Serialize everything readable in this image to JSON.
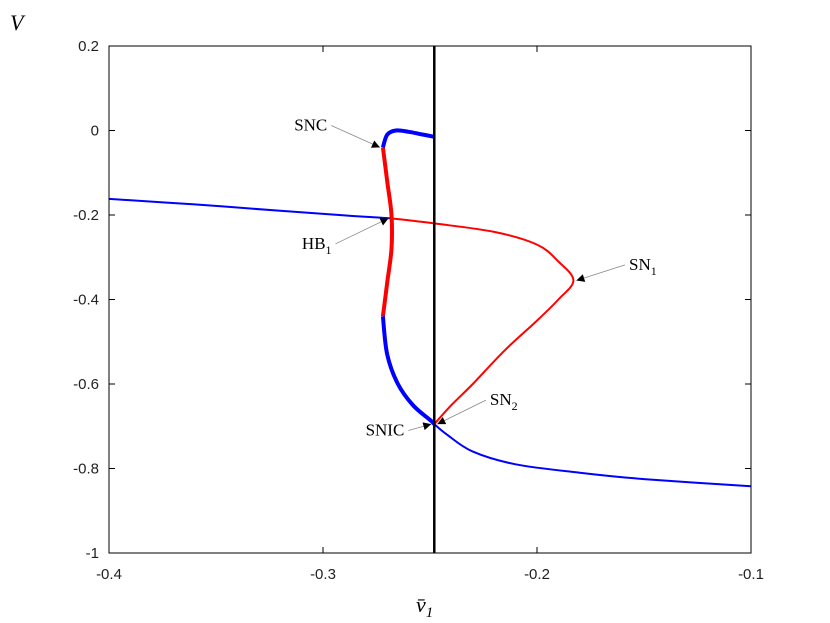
{
  "chart_data": {
    "type": "line",
    "ylabel": "V",
    "xlabel": "v̄",
    "xlabel_sub": "1",
    "xlim": [
      -0.4,
      -0.1
    ],
    "ylim": [
      -1,
      0.2
    ],
    "xticks": [
      -0.4,
      -0.3,
      -0.2,
      -0.1
    ],
    "xtick_labels": [
      "-0.4",
      "-0.3",
      "-0.2",
      "-0.1"
    ],
    "yticks": [
      0.2,
      0,
      -0.2,
      -0.4,
      -0.6,
      -0.8,
      -1
    ],
    "ytick_labels": [
      "0.2",
      "0",
      "-0.2",
      "-0.4",
      "-0.6",
      "-0.8",
      "-1"
    ],
    "grid": false,
    "vertical_line_x": -0.248,
    "series": [
      {
        "color": "#0000ff",
        "width": 2,
        "x": [
          -0.4,
          -0.36,
          -0.32,
          -0.29,
          -0.268
        ],
        "y": [
          -0.162,
          -0.175,
          -0.19,
          -0.201,
          -0.208
        ]
      },
      {
        "color": "#ff0000",
        "width": 2,
        "x": [
          -0.268,
          -0.248,
          -0.22,
          -0.2,
          -0.19,
          -0.183,
          -0.19,
          -0.2,
          -0.215,
          -0.23,
          -0.24,
          -0.248
        ],
        "y": [
          -0.208,
          -0.22,
          -0.24,
          -0.27,
          -0.31,
          -0.355,
          -0.4,
          -0.45,
          -0.52,
          -0.6,
          -0.65,
          -0.695
        ]
      },
      {
        "color": "#0000ff",
        "width": 2,
        "x": [
          -0.248,
          -0.242,
          -0.23,
          -0.21,
          -0.18,
          -0.15,
          -0.1
        ],
        "y": [
          -0.695,
          -0.72,
          -0.76,
          -0.79,
          -0.81,
          -0.825,
          -0.842
        ]
      },
      {
        "color": "#ff0000",
        "width": 4,
        "x": [
          -0.272,
          -0.27,
          -0.268,
          -0.268,
          -0.27,
          -0.272
        ],
        "y": [
          -0.04,
          -0.12,
          -0.2,
          -0.28,
          -0.36,
          -0.44
        ]
      },
      {
        "color": "#0000ff",
        "width": 4,
        "x": [
          -0.272,
          -0.27,
          -0.265,
          -0.258,
          -0.25,
          -0.248
        ],
        "y": [
          -0.44,
          -0.53,
          -0.6,
          -0.65,
          -0.685,
          -0.695
        ]
      },
      {
        "color": "#0000ff",
        "width": 4,
        "x": [
          -0.272,
          -0.27,
          -0.266,
          -0.26,
          -0.255,
          -0.248
        ],
        "y": [
          -0.04,
          -0.01,
          0.0,
          -0.003,
          -0.008,
          -0.015
        ]
      }
    ],
    "annotations": [
      {
        "text": "SNC",
        "sub": "",
        "x": -0.272,
        "y": -0.04,
        "label_x": -0.298,
        "label_y": 0.0
      },
      {
        "text": "HB",
        "sub": "1",
        "x": -0.268,
        "y": -0.208,
        "label_x": -0.296,
        "label_y": -0.28
      },
      {
        "text": "SN",
        "sub": "1",
        "x": -0.183,
        "y": -0.355,
        "label_x": -0.157,
        "label_y": -0.33
      },
      {
        "text": "SN",
        "sub": "2",
        "x": -0.248,
        "y": -0.695,
        "label_x": -0.222,
        "label_y": -0.65
      },
      {
        "text": "SNIC",
        "sub": "",
        "x": -0.248,
        "y": -0.695,
        "label_x": -0.262,
        "label_y": -0.722
      }
    ]
  }
}
